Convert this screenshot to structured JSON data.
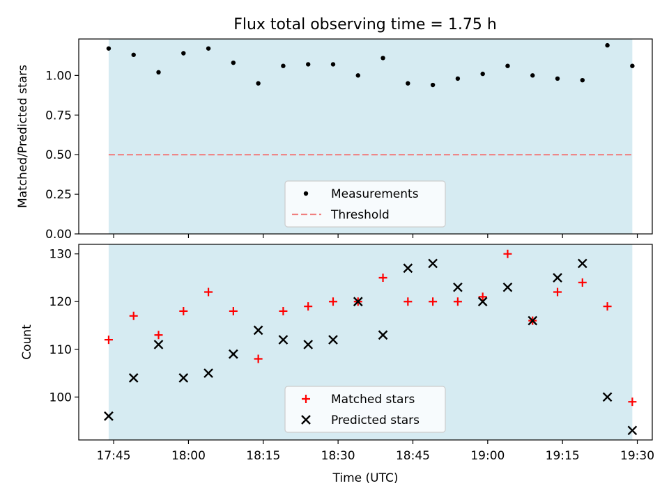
{
  "figure": {
    "title": "Flux total observing time = 1.75 h"
  },
  "chart_data": [
    {
      "type": "scatter",
      "title": "Flux total observing time = 1.75 h",
      "xlabel": "",
      "ylabel": "Matched/Predicted stars",
      "xlim": [
        "17:38",
        "19:33"
      ],
      "ylim": [
        0,
        1.23
      ],
      "yticks": [
        "0.00",
        "0.25",
        "0.50",
        "0.75",
        "1.00"
      ],
      "shaded_span": {
        "from": "17:44",
        "to": "19:29",
        "color": "#add8e6"
      },
      "x": [
        "17:44",
        "17:49",
        "17:54",
        "17:59",
        "18:04",
        "18:09",
        "18:14",
        "18:19",
        "18:24",
        "18:29",
        "18:34",
        "18:39",
        "18:44",
        "18:49",
        "18:54",
        "18:59",
        "19:04",
        "19:09",
        "19:14",
        "19:19",
        "19:24",
        "19:29"
      ],
      "series": [
        {
          "name": "Measurements",
          "marker": "dot",
          "color": "#000000",
          "values": [
            1.17,
            1.13,
            1.02,
            1.14,
            1.17,
            1.08,
            0.95,
            1.06,
            1.07,
            1.07,
            1.0,
            1.11,
            0.95,
            0.94,
            0.98,
            1.01,
            1.06,
            1.0,
            0.98,
            0.97,
            1.19,
            1.06
          ]
        }
      ],
      "threshold": {
        "name": "Threshold",
        "value": 0.5,
        "color": "#f08080",
        "style": "dashed"
      },
      "legend": {
        "placement": "lower center",
        "entries": [
          "Measurements",
          "Threshold"
        ]
      }
    },
    {
      "type": "scatter",
      "xlabel": "Time (UTC)",
      "ylabel": "Count",
      "xlim": [
        "17:38",
        "19:33"
      ],
      "ylim": [
        91,
        132
      ],
      "xticks": [
        "17:45",
        "18:00",
        "18:15",
        "18:30",
        "18:45",
        "19:00",
        "19:15",
        "19:30"
      ],
      "yticks": [
        "100",
        "110",
        "120",
        "130"
      ],
      "shaded_span": {
        "from": "17:44",
        "to": "19:29",
        "color": "#add8e6"
      },
      "x": [
        "17:44",
        "17:49",
        "17:54",
        "17:59",
        "18:04",
        "18:09",
        "18:14",
        "18:19",
        "18:24",
        "18:29",
        "18:34",
        "18:39",
        "18:44",
        "18:49",
        "18:54",
        "18:59",
        "19:04",
        "19:09",
        "19:14",
        "19:19",
        "19:24",
        "19:29"
      ],
      "series": [
        {
          "name": "Matched stars",
          "marker": "plus",
          "color": "#ff0000",
          "values": [
            112,
            117,
            113,
            118,
            122,
            118,
            108,
            118,
            119,
            120,
            120,
            125,
            120,
            120,
            120,
            121,
            130,
            116,
            122,
            124,
            119,
            99
          ]
        },
        {
          "name": "Predicted stars",
          "marker": "x",
          "color": "#000000",
          "values": [
            96,
            104,
            111,
            104,
            105,
            109,
            114,
            112,
            111,
            112,
            120,
            113,
            127,
            128,
            123,
            120,
            123,
            116,
            125,
            128,
            100,
            93
          ]
        }
      ],
      "legend": {
        "placement": "lower center",
        "entries": [
          "Matched stars",
          "Predicted stars"
        ]
      }
    }
  ]
}
